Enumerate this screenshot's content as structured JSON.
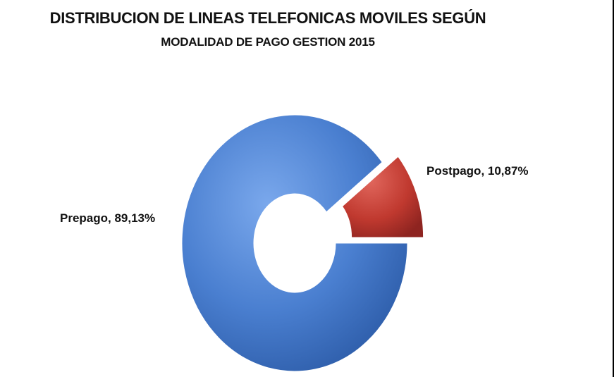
{
  "chart_data": {
    "type": "pie",
    "variant": "exploded-donut",
    "title": "DISTRIBUCION DE LINEAS TELEFONICAS MOVILES SEGÚN",
    "subtitle": "MODALIDAD DE PAGO  GESTION 2015",
    "slices": [
      {
        "name": "Prepago",
        "value": 89.13,
        "label": "Prepago, 89,13%",
        "color": "#4a7fd0"
      },
      {
        "name": "Postpago",
        "value": 10.87,
        "label": "Postpago, 10,87%",
        "color": "#c0392f"
      }
    ]
  }
}
